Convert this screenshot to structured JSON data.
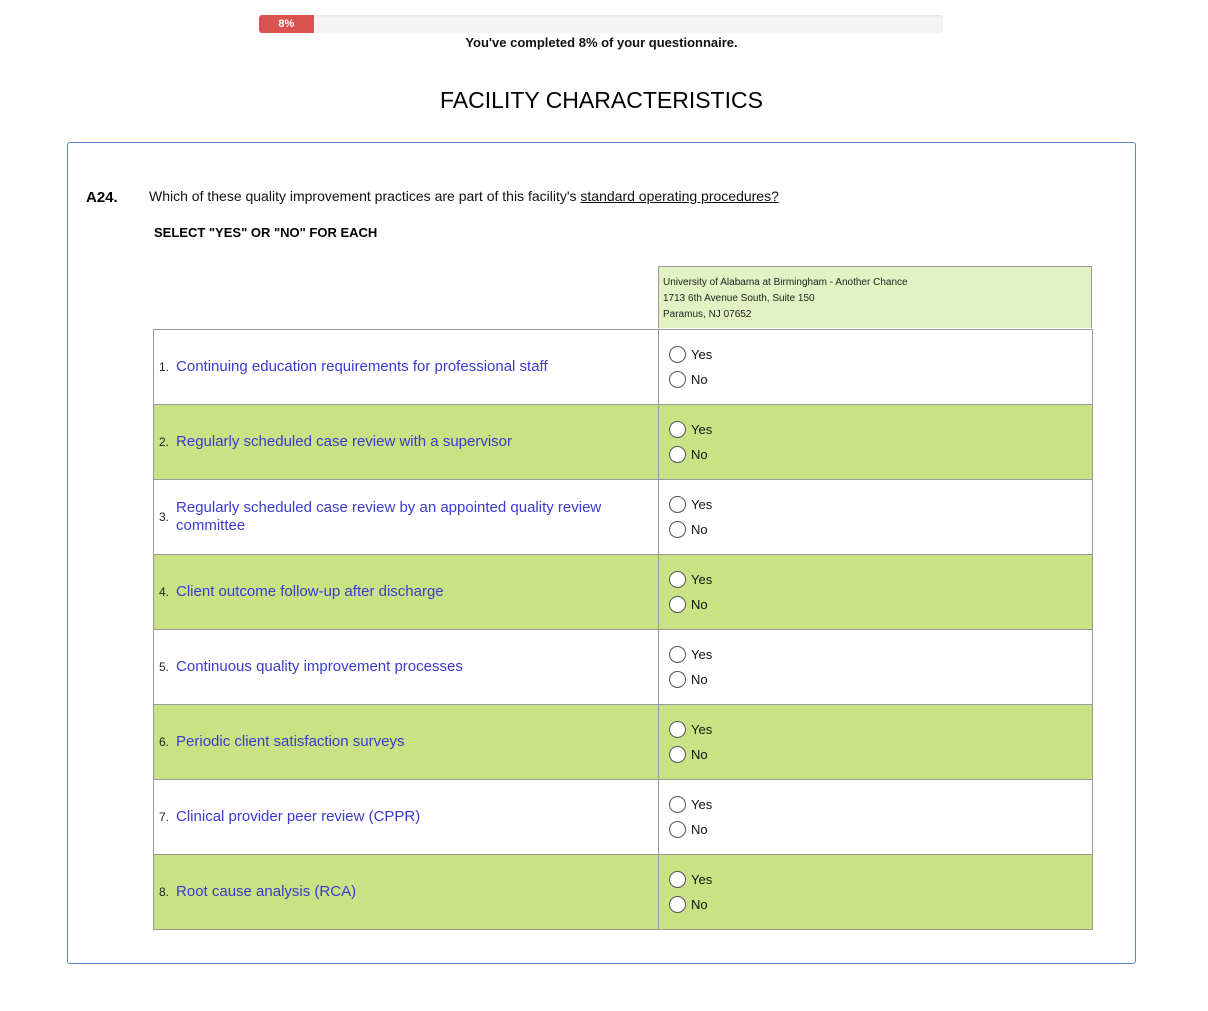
{
  "progress": {
    "percent": 8,
    "label": "8%",
    "text": "You've completed 8% of your questionnaire.",
    "color": "#d9534f"
  },
  "page_title": "FACILITY CHARACTERISTICS",
  "question": {
    "number": "A24.",
    "text": "Which of these quality improvement practices are part of this facility's ",
    "underlined": "standard operating procedures?",
    "instruction": "SELECT \"YES\" OR \"NO\" FOR EACH"
  },
  "facility": {
    "name": "University of Alabama at Birmingham - Another Chance",
    "address": "1713 6th Avenue South, Suite 150",
    "city": "Paramus, NJ 07652"
  },
  "options": {
    "yes": "Yes",
    "no": "No"
  },
  "items": [
    {
      "num": "1.",
      "label": "Continuing education requirements for professional staff"
    },
    {
      "num": "2.",
      "label": "Regularly scheduled case review with a supervisor"
    },
    {
      "num": "3.",
      "label": "Regularly scheduled case review by an appointed quality review committee"
    },
    {
      "num": "4.",
      "label": "Client outcome follow-up after discharge"
    },
    {
      "num": "5.",
      "label": "Continuous quality improvement processes"
    },
    {
      "num": "6.",
      "label": "Periodic client satisfaction surveys"
    },
    {
      "num": "7.",
      "label": "Clinical provider peer review (CPPR)"
    },
    {
      "num": "8.",
      "label": "Root cause analysis (RCA)"
    }
  ]
}
